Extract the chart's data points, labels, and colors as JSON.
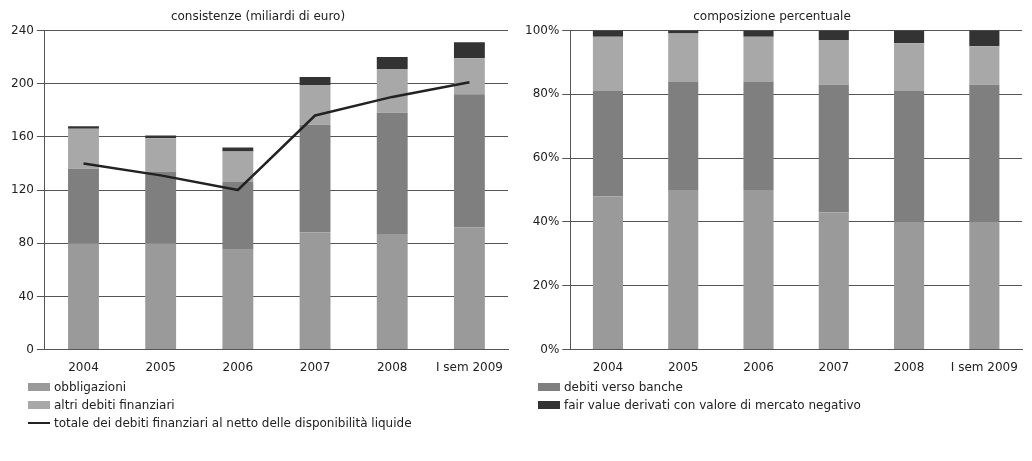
{
  "chart_data": [
    {
      "type": "bar",
      "title": "consistenze (miliardi di euro)",
      "categories": [
        "2004",
        "2005",
        "2006",
        "2007",
        "2008",
        "I sem 2009"
      ],
      "stacked": true,
      "ylim": [
        0,
        240
      ],
      "yticks": [
        0,
        40,
        80,
        120,
        160,
        200,
        240
      ],
      "grid": "y",
      "legend": "bottom",
      "marker": "none",
      "series": [
        {
          "name": "obbligazioni",
          "color": "#9a9a9a",
          "values": [
            80,
            80,
            75,
            88,
            87,
            92
          ]
        },
        {
          "color": "#7f7f7f",
          "values": [
            56,
            54,
            51,
            81,
            91,
            100
          ]
        },
        {
          "name": "altri debiti finanziari",
          "color": "#a8a8a8",
          "values": [
            30,
            25,
            23,
            30,
            33,
            27
          ]
        },
        {
          "color": "#333333",
          "values": [
            2,
            2,
            3,
            6,
            9,
            12
          ]
        },
        {
          "name": "totale dei debiti finanziari al netto delle disponibilità liquide",
          "type": "line",
          "color": "#222222",
          "values": [
            140,
            131,
            120,
            176,
            190,
            201
          ]
        }
      ]
    },
    {
      "type": "bar",
      "title": "composizione percentuale",
      "categories": [
        "2004",
        "2005",
        "2006",
        "2007",
        "2008",
        "I sem 2009"
      ],
      "stacked": true,
      "ylim": [
        0,
        100
      ],
      "yticks": [
        {
          "value": 0,
          "label": "0%"
        },
        {
          "value": 20,
          "label": "20%"
        },
        {
          "value": 40,
          "label": "40%"
        },
        {
          "value": 60,
          "label": "60%"
        },
        {
          "value": 80,
          "label": "80%"
        },
        {
          "value": 100,
          "label": "100%"
        }
      ],
      "grid": "y",
      "legend": "bottom",
      "series": [
        {
          "color": "#9a9a9a",
          "values": [
            48,
            50,
            50,
            43,
            40,
            40
          ]
        },
        {
          "name": "debiti verso banche",
          "color": "#7f7f7f",
          "values": [
            33,
            34,
            34,
            40,
            41,
            43
          ]
        },
        {
          "color": "#a8a8a8",
          "values": [
            17,
            15,
            14,
            14,
            15,
            12
          ]
        },
        {
          "name": "fair value derivati con valore di mercato negativo",
          "color": "#333333",
          "values": [
            2,
            1,
            2,
            3,
            4,
            5
          ]
        }
      ]
    }
  ]
}
